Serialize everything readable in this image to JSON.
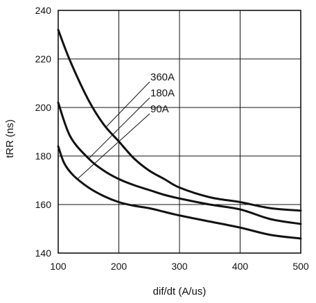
{
  "chart_data": {
    "type": "line",
    "title": "",
    "xlabel": "dif/dt  (A/us)",
    "ylabel": "tRR (ns)",
    "xlim": [
      100,
      500
    ],
    "ylim": [
      140,
      240
    ],
    "xticks": [
      100,
      200,
      300,
      400,
      500
    ],
    "yticks": [
      140,
      160,
      180,
      200,
      220,
      240
    ],
    "grid": true,
    "series": [
      {
        "name": "360A",
        "x": [
          100,
          120,
          150,
          175,
          200,
          225,
          250,
          275,
          300,
          350,
          400,
          450,
          500
        ],
        "y": [
          232,
          219,
          203,
          193,
          186,
          179,
          174,
          170.5,
          167,
          163,
          161,
          158.5,
          157.5
        ]
      },
      {
        "name": "180A",
        "x": [
          100,
          120,
          150,
          175,
          200,
          225,
          250,
          275,
          300,
          350,
          400,
          450,
          500
        ],
        "y": [
          202,
          188,
          179,
          174,
          170.5,
          168,
          166,
          164,
          162.5,
          160,
          158,
          154,
          152
        ]
      },
      {
        "name": "90A",
        "x": [
          100,
          110,
          125,
          150,
          175,
          200,
          225,
          250,
          275,
          300,
          350,
          400,
          450,
          500
        ],
        "y": [
          184,
          177,
          172,
          167,
          163.5,
          161,
          159.5,
          158.5,
          157,
          155.5,
          153,
          150.5,
          147.5,
          146
        ]
      }
    ]
  }
}
